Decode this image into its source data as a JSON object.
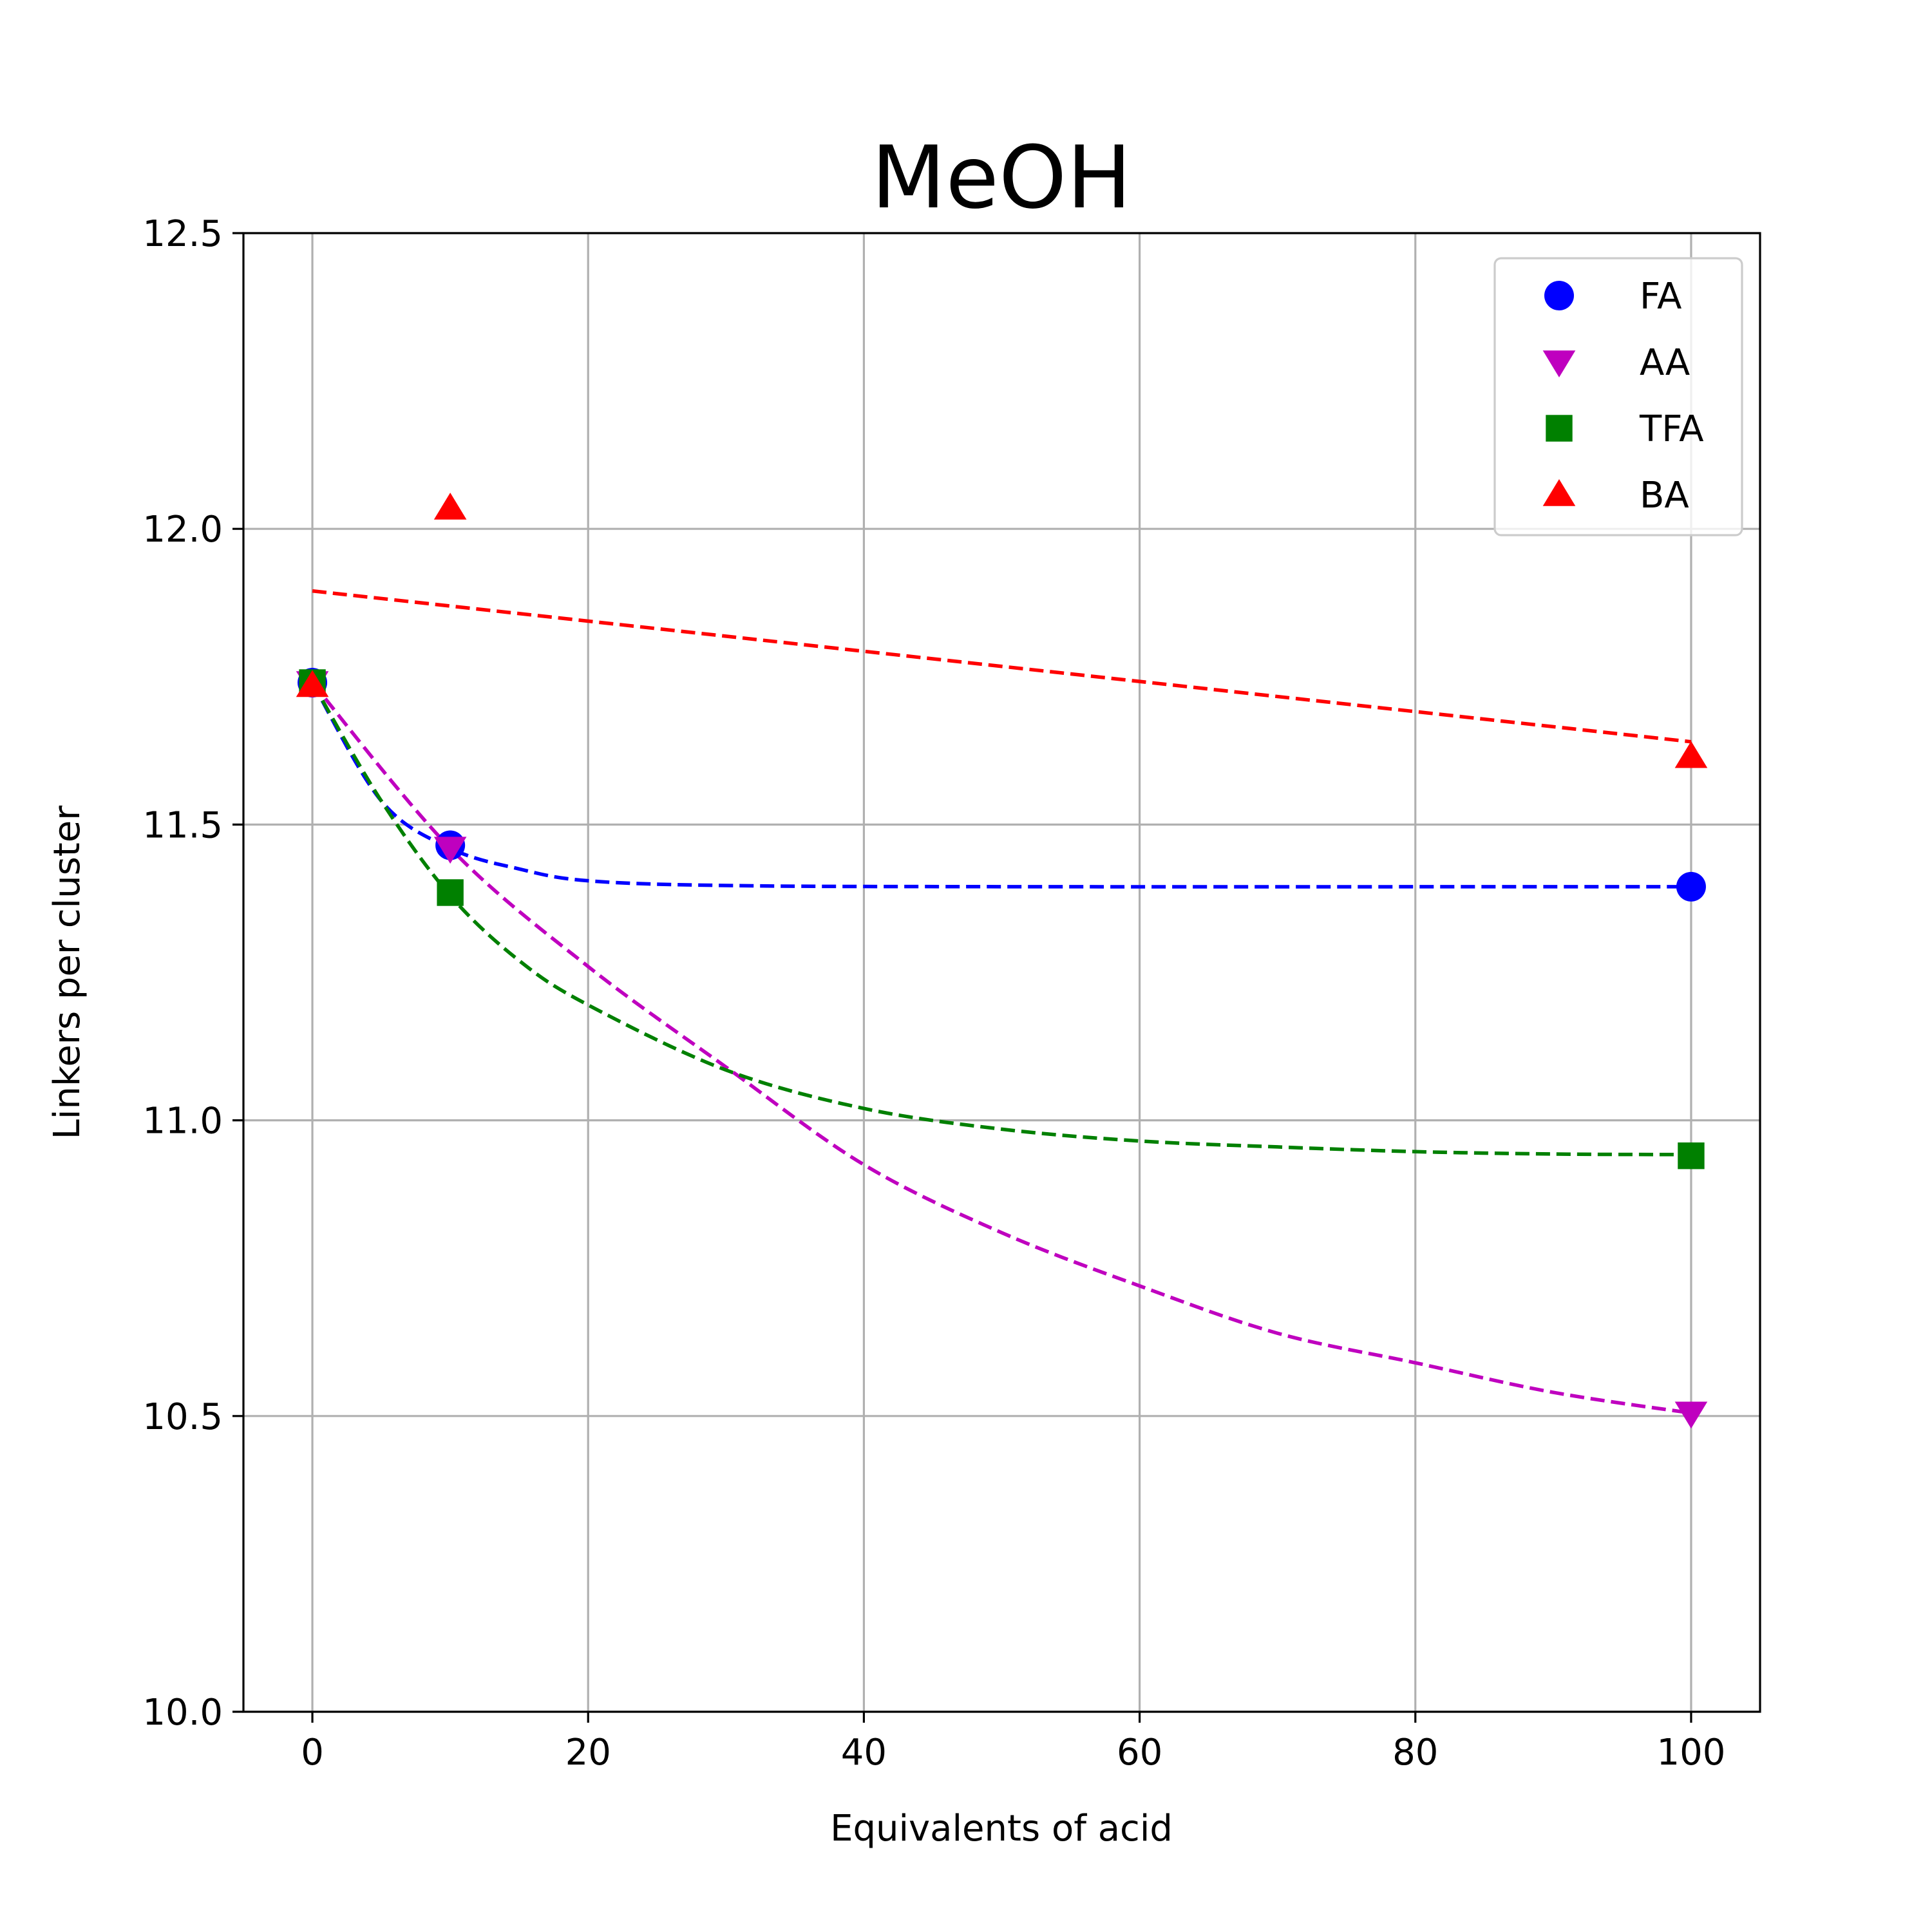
{
  "chart_data": {
    "type": "scatter",
    "title": "MeOH",
    "xlabel": "Equivalents of acid",
    "ylabel": "Linkers per cluster",
    "xlim": [
      -5,
      105
    ],
    "ylim": [
      10.0,
      12.5
    ],
    "xticks": [
      0,
      20,
      40,
      60,
      80,
      100
    ],
    "yticks": [
      "10.0",
      "10.5",
      "11.0",
      "11.5",
      "12.0",
      "12.5"
    ],
    "grid": true,
    "legend_position": "top-right",
    "series": [
      {
        "name": "FA",
        "color": "#0000ff",
        "marker": "circle",
        "x": [
          0,
          10,
          100
        ],
        "y": [
          11.74,
          11.465,
          11.395
        ],
        "fit": [
          [
            0,
            11.74
          ],
          [
            5,
            11.54
          ],
          [
            10,
            11.46
          ],
          [
            15,
            11.425
          ],
          [
            20,
            11.405
          ],
          [
            30,
            11.397
          ],
          [
            50,
            11.395
          ],
          [
            100,
            11.395
          ]
        ]
      },
      {
        "name": "AA",
        "color": "#bf00bf",
        "marker": "triangle-down",
        "x": [
          0,
          10,
          100
        ],
        "y": [
          11.74,
          11.46,
          10.505
        ],
        "fit": [
          [
            0,
            11.74
          ],
          [
            10,
            11.46
          ],
          [
            20,
            11.26
          ],
          [
            30,
            11.09
          ],
          [
            40,
            10.925
          ],
          [
            50,
            10.81
          ],
          [
            60,
            10.72
          ],
          [
            70,
            10.64
          ],
          [
            80,
            10.59
          ],
          [
            90,
            10.54
          ],
          [
            100,
            10.505
          ]
        ]
      },
      {
        "name": "TFA",
        "color": "#008000",
        "marker": "square",
        "x": [
          0,
          10,
          100
        ],
        "y": [
          11.74,
          11.385,
          10.94
        ],
        "fit": [
          [
            0,
            11.74
          ],
          [
            5,
            11.54
          ],
          [
            10,
            11.38
          ],
          [
            15,
            11.27
          ],
          [
            20,
            11.195
          ],
          [
            30,
            11.085
          ],
          [
            40,
            11.02
          ],
          [
            50,
            10.985
          ],
          [
            60,
            10.965
          ],
          [
            70,
            10.955
          ],
          [
            80,
            10.947
          ],
          [
            90,
            10.943
          ],
          [
            100,
            10.942
          ]
        ]
      },
      {
        "name": "BA",
        "color": "#ff0000",
        "marker": "triangle-up",
        "x": [
          0,
          10,
          100
        ],
        "y": [
          11.735,
          12.035,
          11.615
        ],
        "fit": [
          [
            0,
            11.895
          ],
          [
            100,
            11.64
          ]
        ]
      }
    ]
  }
}
